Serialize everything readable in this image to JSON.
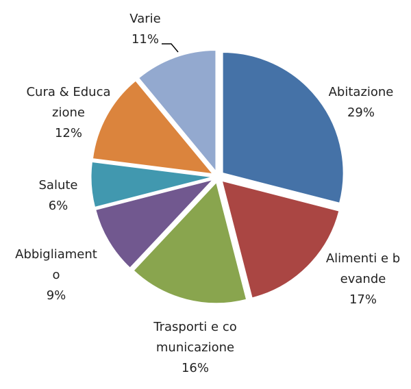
{
  "chart_data": {
    "type": "pie",
    "categories": [
      "Abitazione",
      "Alimenti e bevande",
      "Trasporti e comunicazione",
      "Abbigliamento",
      "Salute",
      "Cura & Educazione",
      "Varie"
    ],
    "values": [
      29,
      17,
      16,
      9,
      6,
      12,
      11
    ],
    "value_labels": [
      "29%",
      "17%",
      "16%",
      "9%",
      "6%",
      "12%",
      "11%"
    ],
    "colors": [
      "#4572a7",
      "#aa4643",
      "#89a54e",
      "#71588f",
      "#4198af",
      "#db843d",
      "#93a9cf"
    ]
  }
}
